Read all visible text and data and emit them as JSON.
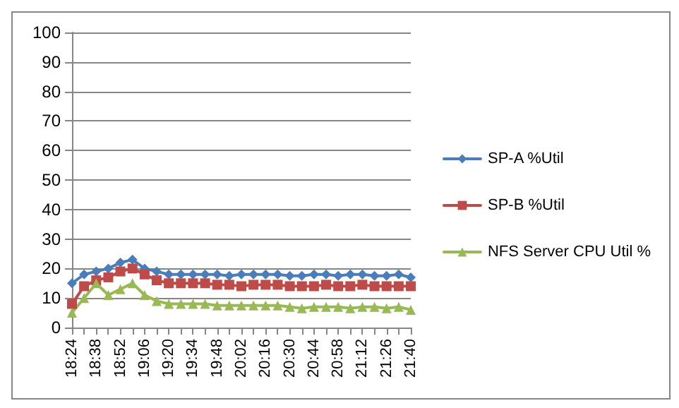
{
  "chart_data": {
    "type": "line",
    "categories": [
      "18:24",
      null,
      "18:38",
      null,
      "18:52",
      null,
      "19:06",
      null,
      "19:20",
      null,
      "19:34",
      null,
      "19:48",
      null,
      "20:02",
      null,
      "20:16",
      null,
      "20:30",
      null,
      "20:44",
      null,
      "20:58",
      null,
      "21:12",
      null,
      "21:26",
      null,
      "21:40"
    ],
    "series": [
      {
        "name": "SP-A %Util",
        "color": "#4a7ebb",
        "marker": "diamond",
        "values": [
          15,
          18,
          19,
          20,
          22,
          23,
          20,
          19,
          18,
          18,
          18,
          18,
          18,
          17.5,
          18,
          18,
          18,
          18,
          17.5,
          17.5,
          18,
          18,
          17.5,
          18,
          18,
          17.5,
          17.5,
          18,
          17
        ]
      },
      {
        "name": "SP-B %Util",
        "color": "#be4b48",
        "marker": "square",
        "values": [
          8,
          14,
          16,
          17,
          19,
          20,
          18,
          16,
          15,
          15,
          15,
          15,
          14.5,
          14.5,
          14,
          14.5,
          14.5,
          14.5,
          14,
          14,
          14,
          14.5,
          14,
          14,
          14.5,
          14,
          14,
          14,
          14
        ]
      },
      {
        "name": "NFS Server CPU Util %",
        "color": "#98b954",
        "marker": "triangle",
        "values": [
          5,
          10,
          15,
          11,
          13,
          15,
          11,
          9,
          8,
          8,
          8,
          8,
          7.5,
          7.5,
          7.5,
          7.5,
          7.5,
          7.5,
          7,
          6.5,
          7,
          7,
          7,
          6.5,
          7,
          7,
          6.5,
          7,
          6
        ]
      }
    ],
    "ylim": [
      0,
      100
    ],
    "yticks": [
      0,
      10,
      20,
      30,
      40,
      50,
      60,
      70,
      80,
      90,
      100
    ],
    "grid": "y",
    "legend": "right"
  }
}
